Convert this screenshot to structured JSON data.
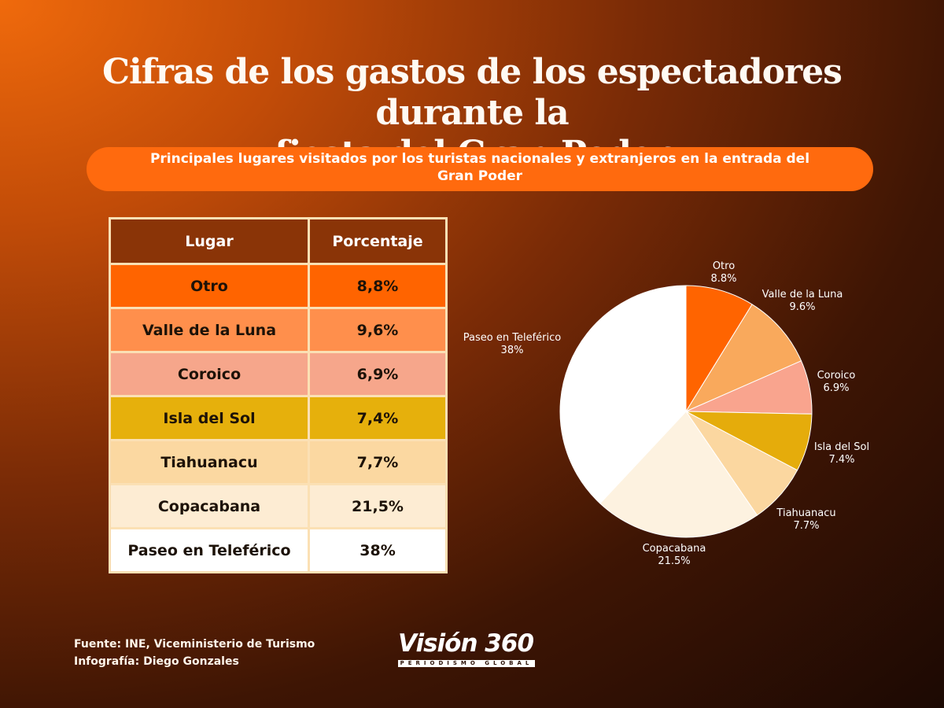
{
  "header": {
    "title_line1": "Cifras de los gastos de los espectadores durante la",
    "title_line2": "fiesta del Gran Poder",
    "subtitle_line1": "Principales lugares visitados por los turistas nacionales y extranjeros  en la entrada del",
    "subtitle_line2": "Gran Poder"
  },
  "table": {
    "headers": [
      "Lugar",
      "Porcentaje"
    ],
    "rows": [
      {
        "place": "Otro",
        "pct": "8,8%",
        "color": "#ff6400"
      },
      {
        "place": "Valle de la Luna",
        "pct": "9,6%",
        "color": "#ff8f4c"
      },
      {
        "place": "Coroico",
        "pct": "6,9%",
        "color": "#f6a68b"
      },
      {
        "place": "Isla del Sol",
        "pct": "7,4%",
        "color": "#e6b00c"
      },
      {
        "place": "Tiahuanacu",
        "pct": "7,7%",
        "color": "#fbd8a1"
      },
      {
        "place": "Copacabana",
        "pct": "21,5%",
        "color": "#fdecd3"
      },
      {
        "place": "Paseo en Teleférico",
        "pct": "38%",
        "color": "#ffffff"
      }
    ]
  },
  "chart_data": {
    "type": "pie",
    "title": "Principales lugares visitados por los turistas nacionales y extranjeros en la entrada del Gran Poder",
    "start": "12 o'clock, clockwise",
    "slices": [
      {
        "label": "Otro",
        "value": 8.8,
        "display": "8.8%",
        "color": "#ff6400"
      },
      {
        "label": "Valle de la Luna",
        "value": 9.6,
        "display": "9.6%",
        "color": "#f9a95c"
      },
      {
        "label": "Coroico",
        "value": 6.9,
        "display": "6.9%",
        "color": "#f9a48e"
      },
      {
        "label": "Isla del Sol",
        "value": 7.4,
        "display": "7.4%",
        "color": "#e5ac0b"
      },
      {
        "label": "Tiahuanacu",
        "value": 7.7,
        "display": "7.7%",
        "color": "#fbd7a0"
      },
      {
        "label": "Copacabana",
        "value": 21.5,
        "display": "21.5%",
        "color": "#fdf2e0"
      },
      {
        "label": "Paseo en Teleférico",
        "value": 38,
        "display": "38%",
        "color": "#ffffff"
      }
    ]
  },
  "footer": {
    "source": "Fuente: INE, Viceministerio de Turismo",
    "credit": "Infografía: Diego Gonzales",
    "logo_main": "Visión 360",
    "logo_sub": "PERIODISMO GLOBAL"
  }
}
